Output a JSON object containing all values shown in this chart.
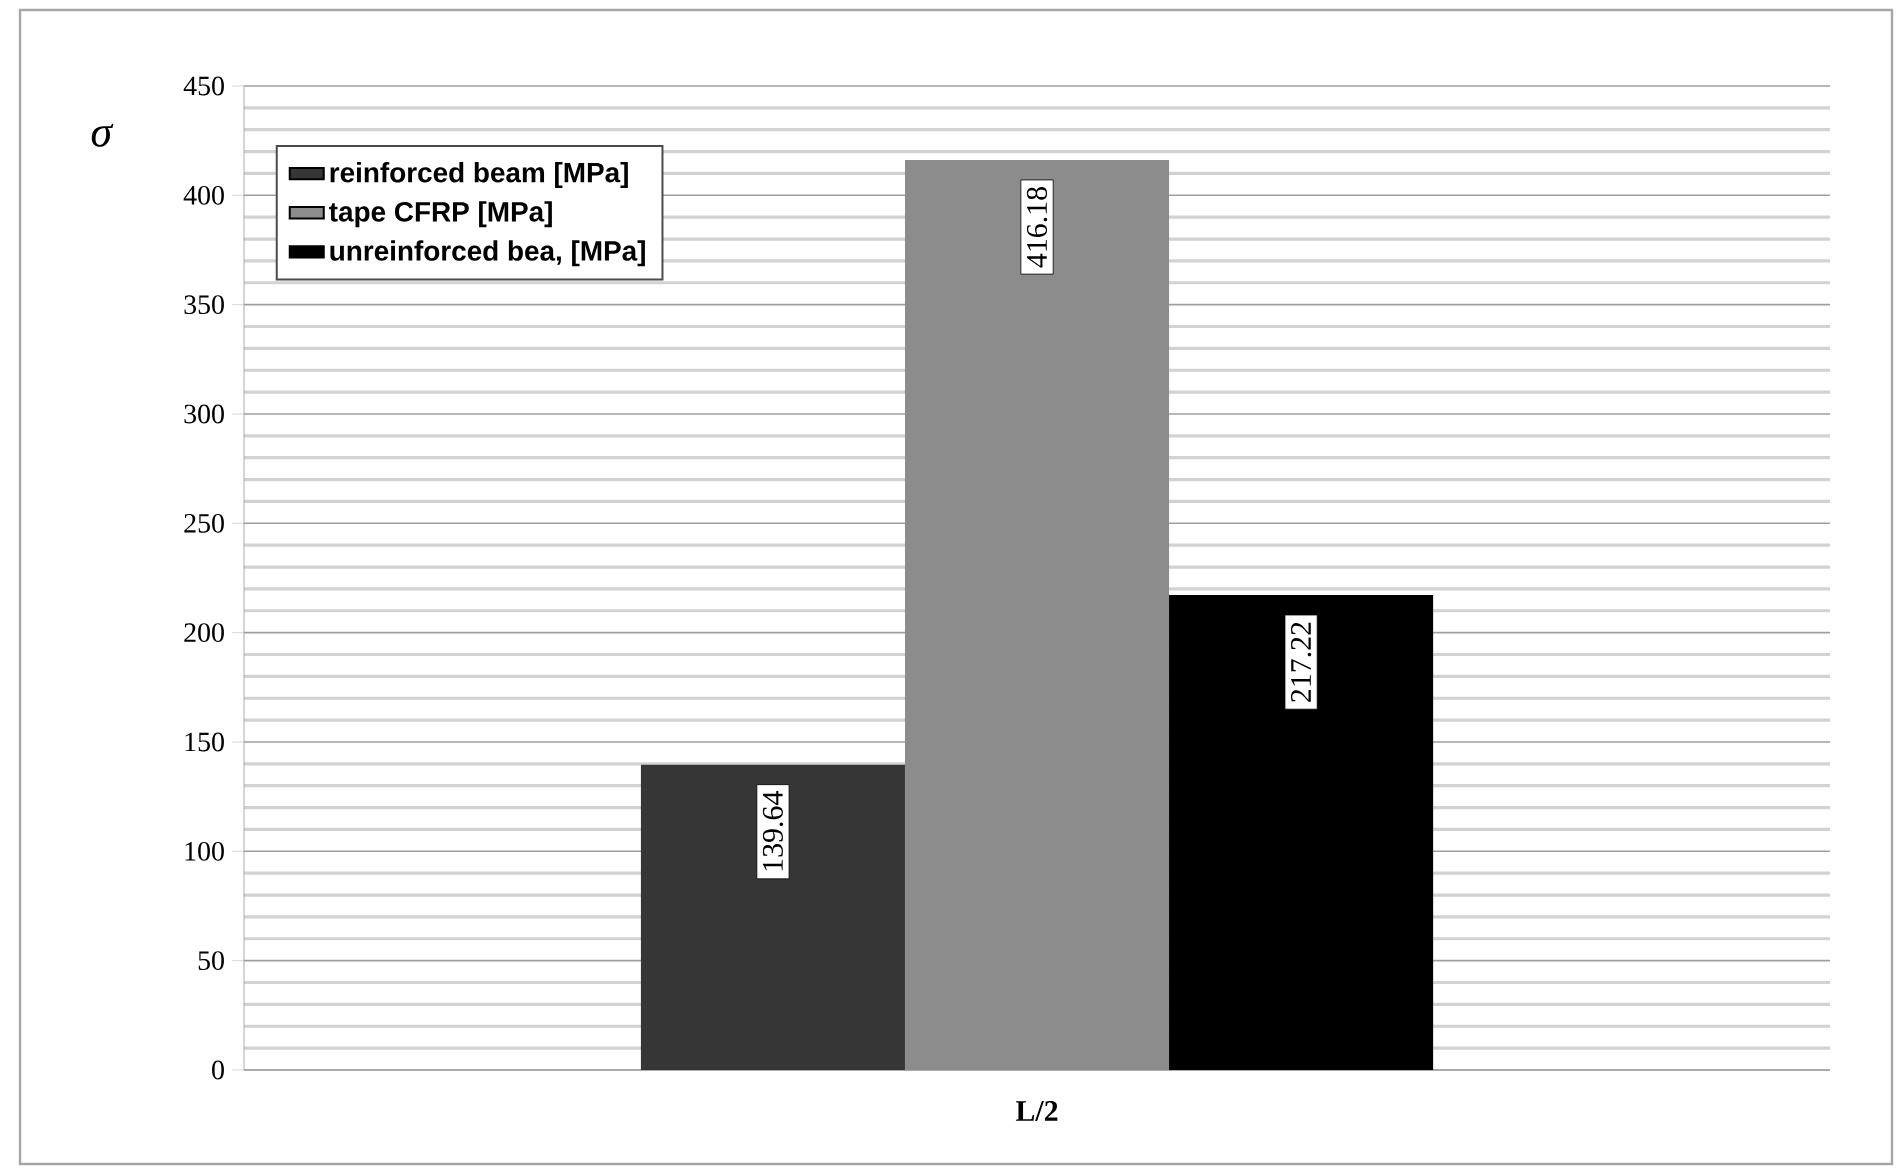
{
  "chart_data": {
    "type": "bar",
    "ylabel": "σ",
    "categories": [
      "L/2"
    ],
    "series": [
      {
        "name": "reinforced beam [MPa]",
        "color": "#363636",
        "values": [
          139.64
        ]
      },
      {
        "name": "tape CFRP [MPa]",
        "color": "#8c8c8c",
        "values": [
          416.18
        ]
      },
      {
        "name": "unreinforced bea, [MPa]",
        "color": "#000000",
        "values": [
          217.22
        ]
      }
    ],
    "ylim": [
      0,
      450
    ],
    "yticks": [
      0,
      50,
      100,
      150,
      200,
      250,
      300,
      350,
      400,
      450
    ],
    "grid": true,
    "legend": "top left",
    "data_labels": true
  }
}
